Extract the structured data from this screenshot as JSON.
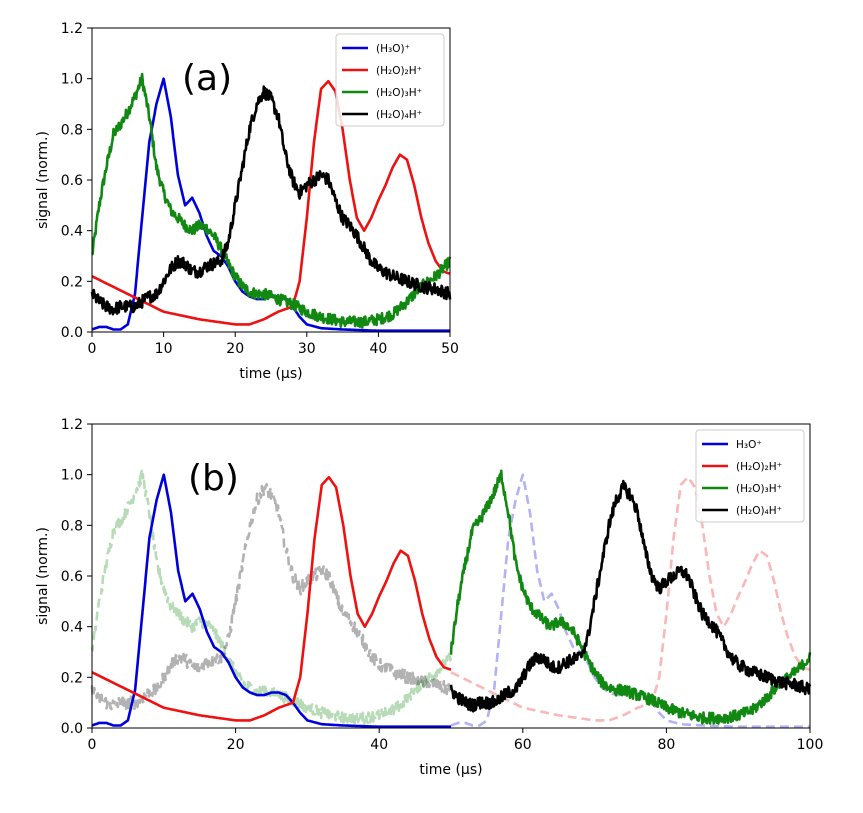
{
  "chart_data": [
    {
      "type": "line",
      "panel_label": "(a)",
      "xlabel": "time (μs)",
      "ylabel": "signal (norm.)",
      "xlim": [
        0,
        50
      ],
      "ylim": [
        0,
        1.2
      ],
      "xticks": [
        0,
        10,
        20,
        30,
        40,
        50
      ],
      "yticks": [
        "0.0",
        "0.2",
        "0.4",
        "0.6",
        "0.8",
        "1.0",
        "1.2"
      ],
      "legend_position": "top-right",
      "series": [
        {
          "name": "(H₃O)⁺",
          "color": "#0000dd",
          "noise": 0,
          "x": [
            0,
            1,
            2,
            3,
            4,
            5,
            6,
            7,
            8,
            9,
            10,
            11,
            12,
            13,
            14,
            15,
            16,
            17,
            18,
            19,
            20,
            21,
            22,
            23,
            24,
            25,
            26,
            27,
            28,
            29,
            30,
            32,
            35,
            40,
            45,
            50
          ],
          "y": [
            0.01,
            0.02,
            0.02,
            0.01,
            0.01,
            0.03,
            0.15,
            0.45,
            0.75,
            0.9,
            1.0,
            0.85,
            0.62,
            0.5,
            0.53,
            0.47,
            0.38,
            0.32,
            0.3,
            0.26,
            0.2,
            0.16,
            0.14,
            0.13,
            0.13,
            0.14,
            0.14,
            0.13,
            0.1,
            0.06,
            0.03,
            0.015,
            0.01,
            0.005,
            0.005,
            0.005
          ]
        },
        {
          "name": "(H₂O)₂H⁺",
          "color": "#ee1111",
          "noise": 0,
          "x": [
            0,
            5,
            10,
            15,
            20,
            22,
            24,
            26,
            28,
            29,
            30,
            31,
            32,
            33,
            34,
            35,
            36,
            37,
            38,
            39,
            40,
            41,
            42,
            43,
            44,
            45,
            46,
            47,
            48,
            49,
            50
          ],
          "y": [
            0.22,
            0.15,
            0.08,
            0.05,
            0.03,
            0.03,
            0.05,
            0.08,
            0.1,
            0.2,
            0.45,
            0.75,
            0.96,
            0.99,
            0.95,
            0.8,
            0.6,
            0.45,
            0.4,
            0.45,
            0.52,
            0.58,
            0.65,
            0.7,
            0.68,
            0.58,
            0.45,
            0.35,
            0.28,
            0.24,
            0.23
          ]
        },
        {
          "name": "(H₂O)₃H⁺",
          "color": "#118811",
          "noise": 0.022,
          "x": [
            0,
            1,
            2,
            3,
            4,
            5,
            6,
            7,
            8,
            9,
            10,
            11,
            12,
            13,
            14,
            15,
            16,
            17,
            18,
            19,
            20,
            21,
            22,
            23,
            24,
            25,
            26,
            28,
            30,
            32,
            35,
            38,
            40,
            42,
            44,
            46,
            48,
            49,
            50
          ],
          "y": [
            0.3,
            0.5,
            0.65,
            0.78,
            0.82,
            0.87,
            0.93,
            1.0,
            0.85,
            0.65,
            0.55,
            0.48,
            0.45,
            0.42,
            0.4,
            0.42,
            0.41,
            0.38,
            0.33,
            0.27,
            0.22,
            0.18,
            0.16,
            0.15,
            0.15,
            0.14,
            0.13,
            0.11,
            0.08,
            0.06,
            0.04,
            0.04,
            0.05,
            0.07,
            0.12,
            0.18,
            0.22,
            0.25,
            0.28
          ]
        },
        {
          "name": "(H₂O)₄H⁺",
          "color": "#000000",
          "noise": 0.025,
          "x": [
            0,
            1,
            2,
            3,
            4,
            5,
            6,
            7,
            8,
            9,
            10,
            11,
            12,
            13,
            14,
            15,
            16,
            17,
            18,
            19,
            20,
            21,
            22,
            23,
            24,
            25,
            26,
            27,
            28,
            29,
            30,
            31,
            32,
            33,
            34,
            35,
            36,
            37,
            38,
            39,
            40,
            42,
            44,
            46,
            48,
            50
          ],
          "y": [
            0.15,
            0.12,
            0.1,
            0.09,
            0.1,
            0.1,
            0.1,
            0.12,
            0.14,
            0.15,
            0.2,
            0.25,
            0.28,
            0.27,
            0.24,
            0.24,
            0.26,
            0.27,
            0.28,
            0.35,
            0.5,
            0.65,
            0.8,
            0.9,
            0.95,
            0.92,
            0.85,
            0.7,
            0.6,
            0.55,
            0.58,
            0.6,
            0.62,
            0.6,
            0.52,
            0.45,
            0.42,
            0.38,
            0.33,
            0.28,
            0.25,
            0.22,
            0.2,
            0.18,
            0.17,
            0.15
          ]
        }
      ]
    },
    {
      "type": "line",
      "panel_label": "(b)",
      "xlabel": "time (μs)",
      "ylabel": "signal (norm.)",
      "xlim": [
        0,
        100
      ],
      "ylim": [
        0,
        1.2
      ],
      "xticks": [
        0,
        20,
        40,
        60,
        80,
        100
      ],
      "yticks": [
        "0.0",
        "0.2",
        "0.4",
        "0.6",
        "0.8",
        "1.0",
        "1.2"
      ],
      "legend_position": "top-right",
      "series": [
        {
          "name": "H₃O⁺",
          "color": "#0000dd",
          "noise": 0,
          "source": 0,
          "shift": 0
        },
        {
          "name": "(H₂O)₂H⁺",
          "color": "#ee1111",
          "noise": 0,
          "source": 1,
          "shift": 0
        },
        {
          "name": "(H₂O)₃H⁺",
          "color": "#118811",
          "noise": 0.022,
          "source": 2,
          "shift": 50
        },
        {
          "name": "(H₂O)₄H⁺",
          "color": "#000000",
          "noise": 0.025,
          "source": 3,
          "shift": 50
        }
      ],
      "ghost_series": [
        {
          "color": "#118811",
          "noise": 0.022,
          "source": 2,
          "shift": 0
        },
        {
          "color": "#000000",
          "noise": 0.025,
          "source": 3,
          "shift": 0
        },
        {
          "color": "#0000dd",
          "noise": 0,
          "source": 0,
          "shift": 50
        },
        {
          "color": "#ee1111",
          "noise": 0,
          "source": 1,
          "shift": 50
        }
      ]
    }
  ]
}
